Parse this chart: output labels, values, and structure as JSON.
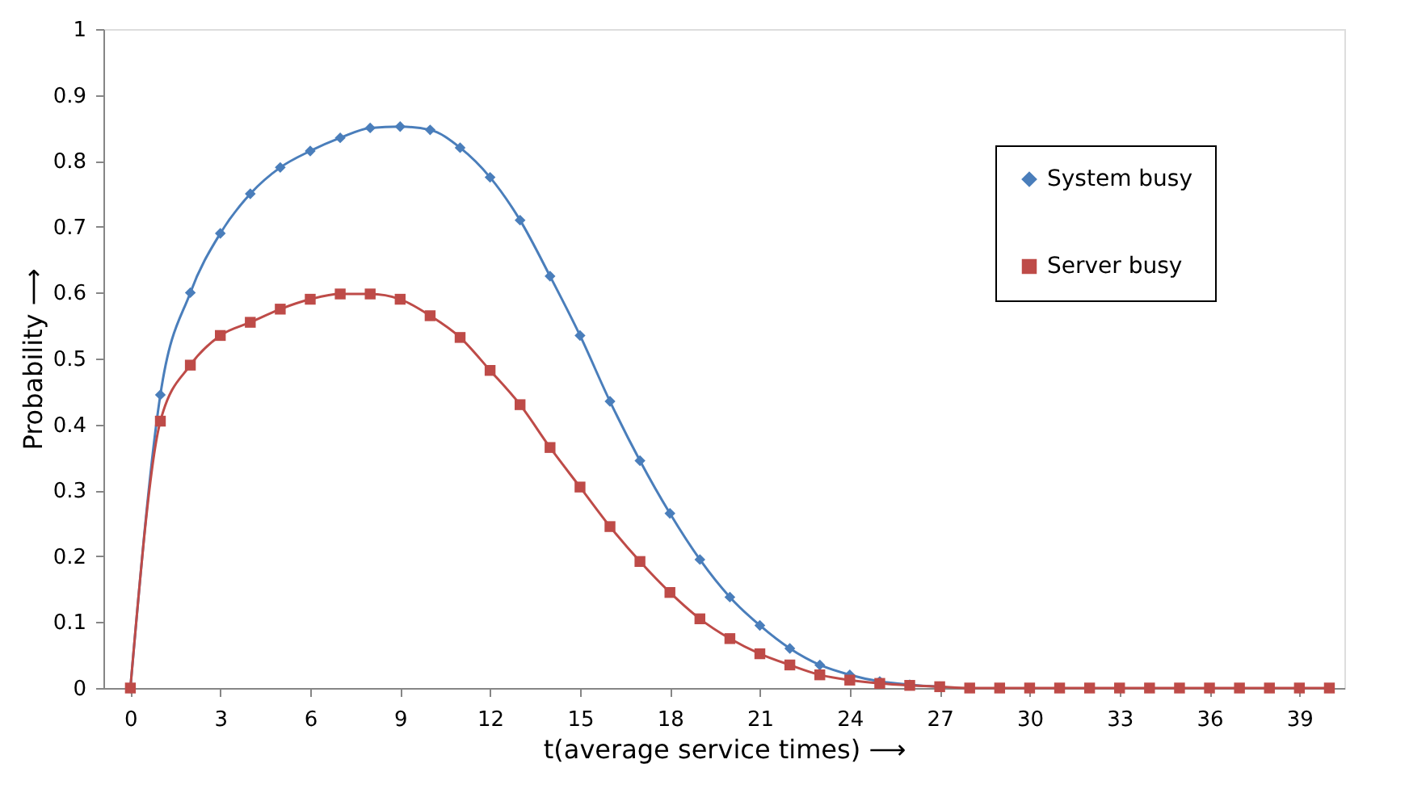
{
  "chart_data": {
    "type": "line",
    "xlabel": "t(average service times) ⟶",
    "ylabel": "Probability ⟶",
    "x": [
      0,
      1,
      2,
      3,
      4,
      5,
      6,
      7,
      8,
      9,
      10,
      11,
      12,
      13,
      14,
      15,
      16,
      17,
      18,
      19,
      20,
      21,
      22,
      23,
      24,
      25,
      26,
      27,
      28,
      29,
      30,
      31,
      32,
      33,
      34,
      35,
      36,
      37,
      38,
      39,
      40
    ],
    "series": [
      {
        "name": "System busy",
        "color": "#4a7ebb",
        "marker": "diamond",
        "values": [
          0,
          0.445,
          0.6,
          0.69,
          0.75,
          0.79,
          0.815,
          0.835,
          0.85,
          0.852,
          0.847,
          0.82,
          0.775,
          0.71,
          0.625,
          0.535,
          0.435,
          0.345,
          0.265,
          0.195,
          0.138,
          0.095,
          0.06,
          0.035,
          0.02,
          0.01,
          0.005,
          0.002,
          null,
          null,
          null,
          null,
          null,
          null,
          null,
          null,
          null,
          null,
          null,
          null,
          null
        ]
      },
      {
        "name": "Server busy",
        "color": "#be4b48",
        "marker": "square",
        "values": [
          0,
          0.405,
          0.49,
          0.535,
          0.555,
          0.575,
          0.59,
          0.598,
          0.598,
          0.59,
          0.565,
          0.532,
          0.482,
          0.43,
          0.365,
          0.305,
          0.245,
          0.192,
          0.145,
          0.105,
          0.075,
          0.052,
          0.035,
          0.02,
          0.012,
          0.007,
          0.004,
          0.002,
          0,
          0,
          0,
          0,
          0,
          0,
          0,
          0,
          0,
          0,
          0,
          0,
          0
        ]
      }
    ],
    "xlim": [
      -0.9,
      40.5
    ],
    "xticks": [
      0,
      3,
      6,
      9,
      12,
      15,
      18,
      21,
      24,
      27,
      30,
      33,
      36,
      39
    ],
    "ylim": [
      0,
      1
    ],
    "yticks": [
      0,
      0.1,
      0.2,
      0.3,
      0.4,
      0.5,
      0.6,
      0.7,
      0.8,
      0.9,
      1
    ],
    "grid": false,
    "legend": "right",
    "line_style": "solid"
  }
}
